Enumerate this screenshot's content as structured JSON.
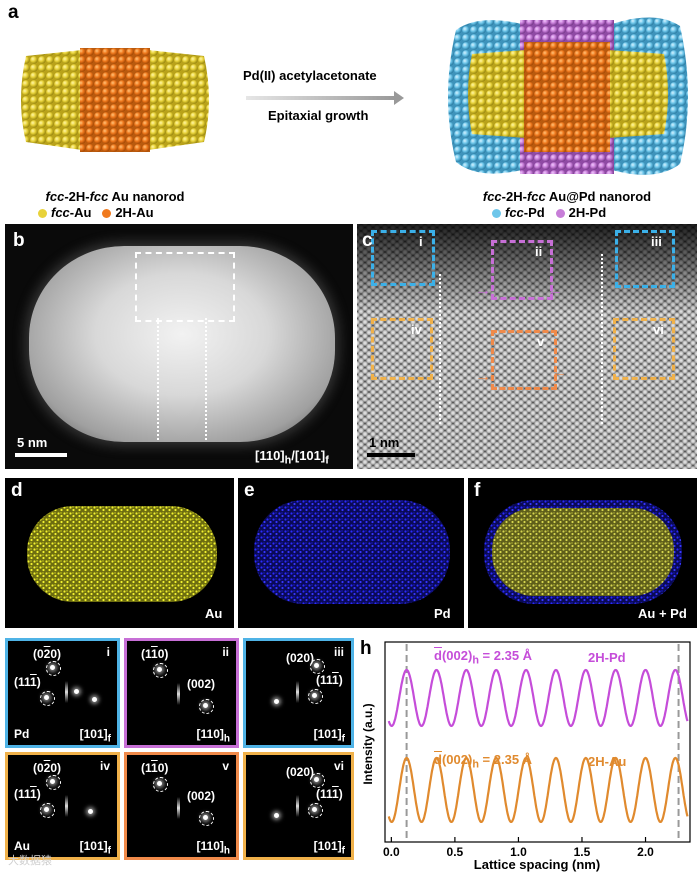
{
  "panel_a": {
    "label": "a",
    "arrow_top": "Pd(II) acetylacetonate",
    "arrow_bottom": "Epitaxial growth",
    "left_caption": [
      "fcc",
      "-2H-",
      "fcc",
      " Au nanorod"
    ],
    "left_legend": [
      {
        "prefix": "fcc",
        "text": "-Au",
        "color": "#e8d23a"
      },
      {
        "prefix": "",
        "text": "2H-Au",
        "color": "#f07a1e"
      }
    ],
    "right_caption": [
      "fcc",
      "-2H-",
      "fcc",
      " Au@Pd nanorod"
    ],
    "right_legend": [
      {
        "prefix": "fcc",
        "text": "-Pd",
        "color": "#6ec6ea"
      },
      {
        "prefix": "",
        "text": "2H-Pd",
        "color": "#c77ed8"
      }
    ]
  },
  "panel_b": {
    "label": "b",
    "scale": "5 nm",
    "zone_axis": "[110]h/[101]f"
  },
  "panel_c": {
    "label": "c",
    "scale": "1 nm",
    "regions": [
      "i",
      "ii",
      "iii",
      "iv",
      "v",
      "vi"
    ]
  },
  "panel_d": {
    "label": "d",
    "element": "Au",
    "color": "#f2f230"
  },
  "panel_e": {
    "label": "e",
    "element": "Pd",
    "color": "#2a2aff"
  },
  "panel_f": {
    "label": "f",
    "element": "Au + Pd"
  },
  "panel_g": {
    "label": "g",
    "tiles": [
      {
        "roman": "i",
        "element": "Pd",
        "zone": "[101]f",
        "border": "#4fb3e6",
        "spots": [
          "(020)",
          "(111)"
        ]
      },
      {
        "roman": "ii",
        "element": "",
        "zone": "[110]h",
        "border": "#c76fd6",
        "spots": [
          "(110)",
          "(002)"
        ]
      },
      {
        "roman": "iii",
        "element": "",
        "zone": "[101]f",
        "border": "#4fb3e6",
        "spots": [
          "(020)",
          "(111)"
        ]
      },
      {
        "roman": "iv",
        "element": "Au",
        "zone": "[101]f",
        "border": "#f0b14a",
        "spots": [
          "(020)",
          "(111)"
        ]
      },
      {
        "roman": "v",
        "element": "",
        "zone": "[110]h",
        "border": "#f08a4a",
        "spots": [
          "(110)",
          "(002)"
        ]
      },
      {
        "roman": "vi",
        "element": "",
        "zone": "[101]f",
        "border": "#f0b14a",
        "spots": [
          "(020)",
          "(111)"
        ]
      }
    ]
  },
  "panel_h": {
    "label": "h"
  },
  "watermark": "大数据猿",
  "chart_data": {
    "type": "line",
    "xlabel": "Lattice spacing (nm)",
    "ylabel": "Intensity (a.u.)",
    "xlim": [
      -0.05,
      2.35
    ],
    "xticks": [
      "0.0",
      "0.5",
      "1.0",
      "1.5",
      "2.0"
    ],
    "dashed_lines_x": [
      0.12,
      2.26
    ],
    "series": [
      {
        "name": "2H-Pd",
        "annotation": "d(002)h = 2.35 Å",
        "color": "#c54dd9",
        "period": 0.235,
        "phase": 0.12,
        "offset": 0.72,
        "amplitude": 0.14
      },
      {
        "name": "2H-Au",
        "annotation": "d(002)h = 2.35 Å",
        "color": "#e08a2e",
        "period": 0.235,
        "phase": 0.12,
        "offset": 0.26,
        "amplitude": 0.16
      }
    ]
  }
}
